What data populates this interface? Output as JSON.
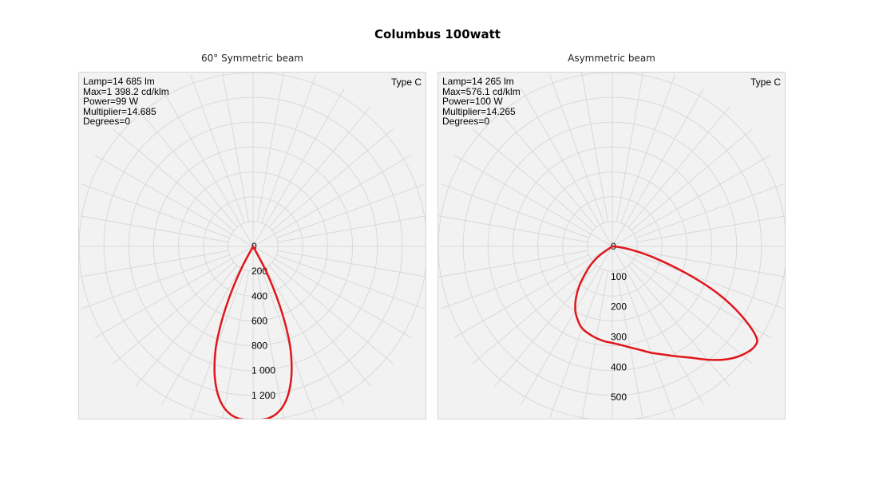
{
  "title": "Columbus 100watt",
  "chart_data": [
    {
      "type": "polar",
      "subtitle": "60° Symmetric beam",
      "info": [
        "Lamp=14 685 lm",
        "Max=1 398.2 cd/klm",
        "Power=99 W",
        "Multiplier=14.685",
        "Degrees=0"
      ],
      "type_label": "Type C",
      "r_ticks": [
        0,
        200,
        400,
        600,
        800,
        1000,
        1200
      ],
      "r_tick_labels": [
        "0",
        "200",
        "400",
        "600",
        "800",
        "1 000",
        "1 200"
      ],
      "r_max": 1400,
      "series": [
        {
          "color": "#e0161b",
          "points": [
            [
              -30,
              0
            ],
            [
              -28,
              180
            ],
            [
              -26,
              360
            ],
            [
              -24,
              540
            ],
            [
              -22,
              720
            ],
            [
              -20,
              880
            ],
            [
              -17,
              1060
            ],
            [
              -14,
              1200
            ],
            [
              -11,
              1300
            ],
            [
              -8,
              1360
            ],
            [
              -5,
              1390
            ],
            [
              -2,
              1398
            ],
            [
              0,
              1398
            ],
            [
              2,
              1398
            ],
            [
              5,
              1390
            ],
            [
              8,
              1360
            ],
            [
              11,
              1300
            ],
            [
              14,
              1200
            ],
            [
              17,
              1060
            ],
            [
              20,
              880
            ],
            [
              22,
              720
            ],
            [
              24,
              540
            ],
            [
              26,
              360
            ],
            [
              28,
              180
            ],
            [
              30,
              0
            ]
          ]
        }
      ]
    },
    {
      "type": "polar",
      "subtitle": "Asymmetric beam",
      "info": [
        "Lamp=14 265 lm",
        "Max=576.1 cd/klm",
        "Power=100 W",
        "Multiplier=14.265",
        "Degrees=0"
      ],
      "type_label": "Type C",
      "r_ticks": [
        0,
        100,
        200,
        300,
        400,
        500
      ],
      "r_tick_labels": [
        "0",
        "100",
        "200",
        "300",
        "400",
        "500"
      ],
      "r_max": 576,
      "series": [
        {
          "color": "#e0161b",
          "points": [
            [
              -62,
              0
            ],
            [
              -55,
              50
            ],
            [
              -50,
              90
            ],
            [
              -45,
              125
            ],
            [
              -40,
              170
            ],
            [
              -35,
              210
            ],
            [
              -30,
              245
            ],
            [
              -25,
              270
            ],
            [
              -20,
              290
            ],
            [
              -12,
              305
            ],
            [
              -5,
              315
            ],
            [
              0,
              320
            ],
            [
              5,
              328
            ],
            [
              10,
              340
            ],
            [
              15,
              355
            ],
            [
              20,
              375
            ],
            [
              25,
              395
            ],
            [
              30,
              420
            ],
            [
              35,
              450
            ],
            [
              40,
              490
            ],
            [
              45,
              530
            ],
            [
              50,
              560
            ],
            [
              55,
              576
            ],
            [
              58,
              560
            ],
            [
              62,
              480
            ],
            [
              66,
              380
            ],
            [
              70,
              260
            ],
            [
              75,
              140
            ],
            [
              80,
              60
            ],
            [
              85,
              15
            ],
            [
              88,
              0
            ]
          ]
        }
      ]
    }
  ]
}
